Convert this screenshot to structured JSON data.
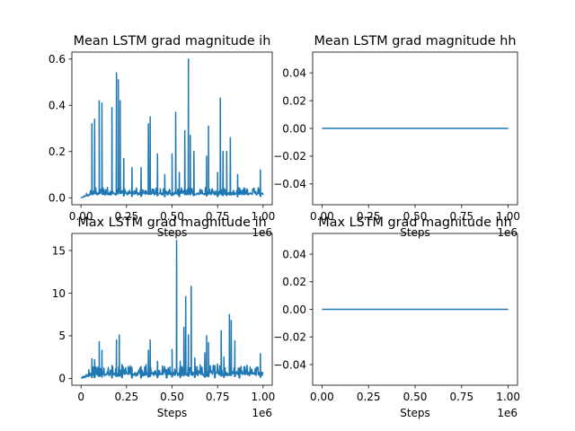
{
  "figure": {
    "background": "#ffffff",
    "line_color": "#1f77b4"
  },
  "chart_data": [
    {
      "type": "line",
      "title": "Mean LSTM grad magnitude ih",
      "xlabel": "Steps",
      "ylabel": "",
      "x_offset_label": "1e6",
      "xlim": [
        -0.05,
        1.05
      ],
      "ylim": [
        -0.03,
        0.63
      ],
      "xticks": [
        0,
        0.25,
        0.5,
        0.75,
        1.0
      ],
      "xticklabels": [
        "0.00",
        "0.25",
        "0.50",
        "0.75",
        "1.00"
      ],
      "yticks": [
        0,
        0.2,
        0.4,
        0.6
      ],
      "yticklabels": [
        "0.0",
        "0.2",
        "0.4",
        "0.6"
      ],
      "grid": false,
      "baseline": [
        0.012,
        0.022
      ],
      "spikes": [
        [
          0.06,
          0.32
        ],
        [
          0.075,
          0.34
        ],
        [
          0.1,
          0.42
        ],
        [
          0.115,
          0.41
        ],
        [
          0.17,
          0.39
        ],
        [
          0.195,
          0.54
        ],
        [
          0.205,
          0.51
        ],
        [
          0.215,
          0.42
        ],
        [
          0.235,
          0.17
        ],
        [
          0.28,
          0.13
        ],
        [
          0.33,
          0.13
        ],
        [
          0.37,
          0.32
        ],
        [
          0.38,
          0.35
        ],
        [
          0.42,
          0.19
        ],
        [
          0.46,
          0.1
        ],
        [
          0.5,
          0.19
        ],
        [
          0.52,
          0.37
        ],
        [
          0.54,
          0.11
        ],
        [
          0.57,
          0.29
        ],
        [
          0.59,
          0.6
        ],
        [
          0.6,
          0.27
        ],
        [
          0.62,
          0.2
        ],
        [
          0.69,
          0.18
        ],
        [
          0.7,
          0.31
        ],
        [
          0.75,
          0.11
        ],
        [
          0.765,
          0.43
        ],
        [
          0.78,
          0.2
        ],
        [
          0.8,
          0.2
        ],
        [
          0.82,
          0.26
        ],
        [
          0.86,
          0.1
        ],
        [
          0.985,
          0.12
        ]
      ]
    },
    {
      "type": "line",
      "title": "Mean LSTM grad magnitude hh",
      "xlabel": "Steps",
      "ylabel": "",
      "x_offset_label": "1e6",
      "xlim": [
        -0.05,
        1.05
      ],
      "ylim": [
        -0.055,
        0.055
      ],
      "xticks": [
        0,
        0.25,
        0.5,
        0.75,
        1.0
      ],
      "xticklabels": [
        "0.00",
        "0.25",
        "0.50",
        "0.75",
        "1.00"
      ],
      "yticks": [
        -0.04,
        -0.02,
        0,
        0.02,
        0.04
      ],
      "yticklabels": [
        "−0.04",
        "−0.02",
        "0.00",
        "0.02",
        "0.04"
      ],
      "grid": false,
      "x": [
        0,
        1.0
      ],
      "y": [
        0,
        0
      ]
    },
    {
      "type": "line",
      "title": "Max LSTM grad magnitude ih",
      "xlabel": "Steps",
      "ylabel": "",
      "x_offset_label": "1e6",
      "xlim": [
        -0.05,
        1.05
      ],
      "ylim": [
        -0.8,
        17
      ],
      "xticks": [
        0,
        0.25,
        0.5,
        0.75,
        1.0
      ],
      "xticklabels": [
        "0",
        "0.25",
        "0.50",
        "0.75",
        "1.00"
      ],
      "yticks": [
        0,
        5,
        10,
        15
      ],
      "yticklabels": [
        "0",
        "5",
        "10",
        "15"
      ],
      "grid": false,
      "baseline": [
        0.3,
        0.7
      ],
      "spikes": [
        [
          0.06,
          2.3
        ],
        [
          0.075,
          2.2
        ],
        [
          0.1,
          4.3
        ],
        [
          0.115,
          3.3
        ],
        [
          0.17,
          1.5
        ],
        [
          0.195,
          4.5
        ],
        [
          0.21,
          5.1
        ],
        [
          0.225,
          1.6
        ],
        [
          0.28,
          1.2
        ],
        [
          0.33,
          1.4
        ],
        [
          0.37,
          3.3
        ],
        [
          0.38,
          4.5
        ],
        [
          0.42,
          2.0
        ],
        [
          0.47,
          1.0
        ],
        [
          0.5,
          3.4
        ],
        [
          0.525,
          16.2
        ],
        [
          0.545,
          2.0
        ],
        [
          0.565,
          6.0
        ],
        [
          0.575,
          9.6
        ],
        [
          0.59,
          5.1
        ],
        [
          0.605,
          10.8
        ],
        [
          0.625,
          2.4
        ],
        [
          0.68,
          3.0
        ],
        [
          0.69,
          5.0
        ],
        [
          0.7,
          4.2
        ],
        [
          0.735,
          1.5
        ],
        [
          0.77,
          5.6
        ],
        [
          0.785,
          2.5
        ],
        [
          0.815,
          7.5
        ],
        [
          0.825,
          6.8
        ],
        [
          0.845,
          4.4
        ],
        [
          0.87,
          1.2
        ],
        [
          0.985,
          2.9
        ]
      ]
    },
    {
      "type": "line",
      "title": "Max LSTM grad magnitude hh",
      "xlabel": "Steps",
      "ylabel": "",
      "x_offset_label": "1e6",
      "xlim": [
        -0.05,
        1.05
      ],
      "ylim": [
        -0.055,
        0.055
      ],
      "xticks": [
        0,
        0.25,
        0.5,
        0.75,
        1.0
      ],
      "xticklabels": [
        "0.00",
        "0.25",
        "0.50",
        "0.75",
        "1.00"
      ],
      "yticks": [
        -0.04,
        -0.02,
        0,
        0.02,
        0.04
      ],
      "yticklabels": [
        "−0.04",
        "−0.02",
        "0.00",
        "0.02",
        "0.04"
      ],
      "grid": false,
      "x": [
        0,
        1.0
      ],
      "y": [
        0,
        0
      ]
    }
  ]
}
